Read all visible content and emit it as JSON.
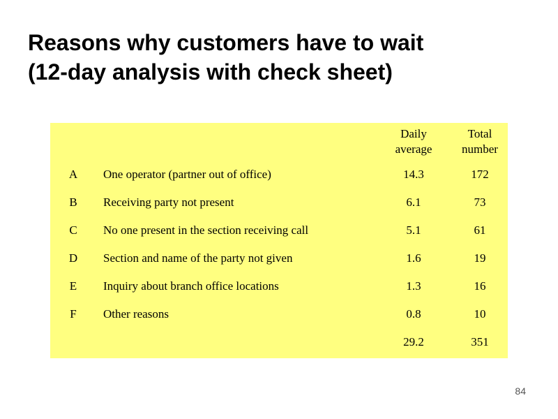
{
  "slide": {
    "title_line1": "Reasons why customers have to wait",
    "title_line2": "(12-day analysis with check sheet)",
    "page_number": "84"
  },
  "table": {
    "headers": {
      "letter": "",
      "reason": "",
      "daily_line1": "Daily",
      "daily_line2": "average",
      "total_line1": "Total",
      "total_line2": "number"
    },
    "rows": [
      {
        "letter": "A",
        "reason": "One operator (partner out of office)",
        "daily": "14.3",
        "total": "172"
      },
      {
        "letter": "B",
        "reason": "Receiving party not present",
        "daily": "6.1",
        "total": "73"
      },
      {
        "letter": "C",
        "reason": "No one present in the section receiving call",
        "daily": "5.1",
        "total": "61"
      },
      {
        "letter": "D",
        "reason": "Section and name of the party not given",
        "daily": "1.6",
        "total": "19"
      },
      {
        "letter": "E",
        "reason": "Inquiry about branch office locations",
        "daily": "1.3",
        "total": "16"
      },
      {
        "letter": "F",
        "reason": "Other reasons",
        "daily": "0.8",
        "total": "10"
      },
      {
        "letter": "",
        "reason": "",
        "daily": "29.2",
        "total": "351"
      }
    ]
  },
  "colors": {
    "table_background": "#ffff80"
  }
}
